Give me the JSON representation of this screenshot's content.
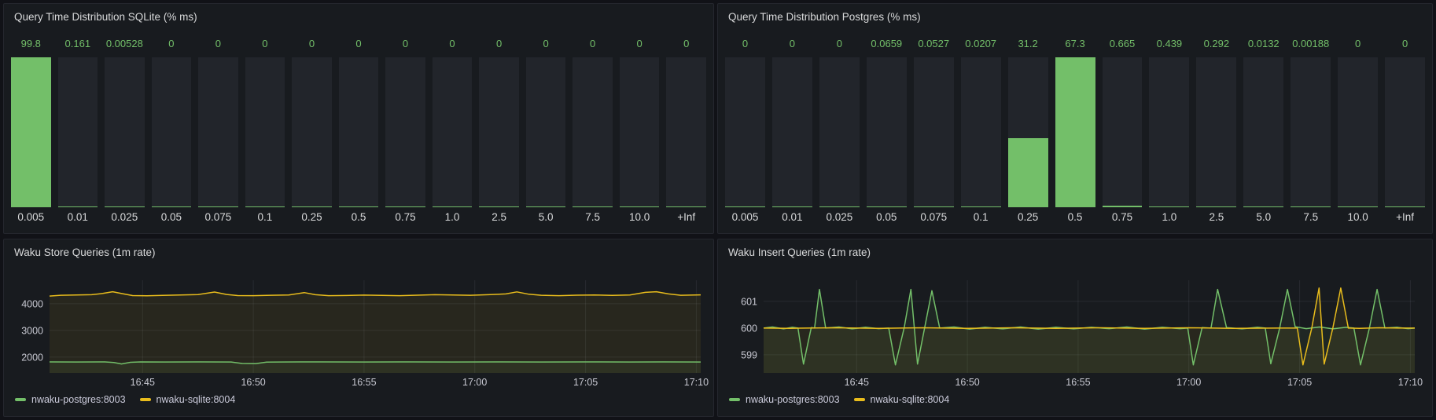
{
  "colors": {
    "green": "#73bf69",
    "yellow": "#e8bc1c",
    "bar_track": "#22252b",
    "panel_bg": "#181b1f",
    "page_bg": "#111217"
  },
  "chart_data": [
    {
      "type": "bar",
      "title": "Query Time Distribution SQLite (% ms)",
      "categories": [
        "0.005",
        "0.01",
        "0.025",
        "0.05",
        "0.075",
        "0.1",
        "0.25",
        "0.5",
        "0.75",
        "1.0",
        "2.5",
        "5.0",
        "7.5",
        "10.0",
        "+Inf"
      ],
      "values": [
        99.8,
        0.161,
        0.00528,
        0,
        0,
        0,
        0,
        0,
        0,
        0,
        0,
        0,
        0,
        0,
        0
      ],
      "value_labels": [
        "99.8",
        "0.161",
        "0.00528",
        "0",
        "0",
        "0",
        "0",
        "0",
        "0",
        "0",
        "0",
        "0",
        "0",
        "0",
        "0"
      ],
      "ylim": [
        0,
        99.8
      ],
      "bar_color": "#73bf69",
      "track_color": "#22252b",
      "grid": false,
      "legend_position": "none"
    },
    {
      "type": "bar",
      "title": "Query Time Distribution Postgres (% ms)",
      "categories": [
        "0.005",
        "0.01",
        "0.025",
        "0.05",
        "0.075",
        "0.1",
        "0.25",
        "0.5",
        "0.75",
        "1.0",
        "2.5",
        "5.0",
        "7.5",
        "10.0",
        "+Inf"
      ],
      "values": [
        0,
        0,
        0,
        0.0659,
        0.0527,
        0.0207,
        31.2,
        67.3,
        0.665,
        0.439,
        0.292,
        0.0132,
        0.00188,
        0,
        0
      ],
      "value_labels": [
        "0",
        "0",
        "0",
        "0.0659",
        "0.0527",
        "0.0207",
        "31.2",
        "67.3",
        "0.665",
        "0.439",
        "0.292",
        "0.0132",
        "0.00188",
        "0",
        "0"
      ],
      "ylim": [
        0,
        67.3
      ],
      "bar_color": "#73bf69",
      "track_color": "#22252b",
      "grid": false,
      "legend_position": "none"
    },
    {
      "type": "line",
      "title": "Waku Store Queries (1m rate)",
      "x_unit": "minutes after 16:40",
      "x_domain": [
        0.8,
        30.2
      ],
      "x_ticks": [
        {
          "v": 5,
          "label": "16:45"
        },
        {
          "v": 10,
          "label": "16:50"
        },
        {
          "v": 15,
          "label": "16:55"
        },
        {
          "v": 20,
          "label": "17:00"
        },
        {
          "v": 25,
          "label": "17:05"
        },
        {
          "v": 30,
          "label": "17:10"
        }
      ],
      "y_domain": [
        1410,
        4880
      ],
      "y_ticks": [
        {
          "v": 2000,
          "label": "2000"
        },
        {
          "v": 3000,
          "label": "3000"
        },
        {
          "v": 4000,
          "label": "4000"
        }
      ],
      "grid": true,
      "fill_opacity": 0.08,
      "legend_position": "bottom-left",
      "series": [
        {
          "name": "nwaku-postgres:8003",
          "color": "#73bf69",
          "points": [
            [
              0.8,
              1822
            ],
            [
              2.0,
              1820
            ],
            [
              3.3,
              1821
            ],
            [
              3.7,
              1798
            ],
            [
              4.05,
              1746
            ],
            [
              4.45,
              1808
            ],
            [
              4.9,
              1821
            ],
            [
              6.0,
              1820
            ],
            [
              7.5,
              1821
            ],
            [
              9.0,
              1819
            ],
            [
              9.5,
              1764
            ],
            [
              10.1,
              1757
            ],
            [
              10.6,
              1812
            ],
            [
              11.2,
              1820
            ],
            [
              13,
              1821
            ],
            [
              15,
              1820
            ],
            [
              17,
              1821
            ],
            [
              19,
              1820
            ],
            [
              21,
              1821
            ],
            [
              23,
              1820
            ],
            [
              25,
              1821
            ],
            [
              27,
              1820
            ],
            [
              28.5,
              1821
            ],
            [
              30.2,
              1820
            ]
          ]
        },
        {
          "name": "nwaku-sqlite:8004",
          "color": "#e8bc1c",
          "points": [
            [
              0.8,
              4290
            ],
            [
              1.3,
              4318
            ],
            [
              2.0,
              4330
            ],
            [
              2.7,
              4338
            ],
            [
              3.2,
              4386
            ],
            [
              3.65,
              4452
            ],
            [
              4.1,
              4378
            ],
            [
              4.55,
              4308
            ],
            [
              5.2,
              4300
            ],
            [
              5.9,
              4314
            ],
            [
              6.7,
              4330
            ],
            [
              7.5,
              4344
            ],
            [
              8.25,
              4440
            ],
            [
              8.8,
              4348
            ],
            [
              9.3,
              4308
            ],
            [
              10.0,
              4304
            ],
            [
              10.8,
              4318
            ],
            [
              11.6,
              4330
            ],
            [
              12.3,
              4418
            ],
            [
              12.8,
              4338
            ],
            [
              13.4,
              4304
            ],
            [
              14.2,
              4310
            ],
            [
              15.0,
              4324
            ],
            [
              15.8,
              4314
            ],
            [
              16.6,
              4304
            ],
            [
              17.4,
              4320
            ],
            [
              18.2,
              4338
            ],
            [
              19.0,
              4328
            ],
            [
              19.8,
              4318
            ],
            [
              20.6,
              4338
            ],
            [
              21.4,
              4368
            ],
            [
              21.9,
              4446
            ],
            [
              22.45,
              4358
            ],
            [
              23.0,
              4318
            ],
            [
              23.8,
              4304
            ],
            [
              24.6,
              4320
            ],
            [
              25.4,
              4330
            ],
            [
              26.2,
              4314
            ],
            [
              27.0,
              4330
            ],
            [
              27.7,
              4428
            ],
            [
              28.2,
              4452
            ],
            [
              28.75,
              4368
            ],
            [
              29.3,
              4318
            ],
            [
              30.2,
              4334
            ]
          ]
        }
      ]
    },
    {
      "type": "line",
      "title": "Waku Insert Queries (1m rate)",
      "x_unit": "minutes after 16:40",
      "x_domain": [
        0.8,
        30.2
      ],
      "x_ticks": [
        {
          "v": 5,
          "label": "16:45"
        },
        {
          "v": 10,
          "label": "16:50"
        },
        {
          "v": 15,
          "label": "16:55"
        },
        {
          "v": 20,
          "label": "17:00"
        },
        {
          "v": 25,
          "label": "17:05"
        },
        {
          "v": 30,
          "label": "17:10"
        }
      ],
      "y_domain": [
        598.32,
        601.79
      ],
      "y_ticks": [
        {
          "v": 599,
          "label": "599"
        },
        {
          "v": 600,
          "label": "600"
        },
        {
          "v": 601,
          "label": "601"
        }
      ],
      "grid": true,
      "fill_opacity": 0.08,
      "legend_position": "bottom-left",
      "series": [
        {
          "name": "nwaku-postgres:8003",
          "color": "#73bf69",
          "points": [
            [
              0.8,
              600
            ],
            [
              1.2,
              600.04
            ],
            [
              1.7,
              599.97
            ],
            [
              2.1,
              600.03
            ],
            [
              2.35,
              600
            ],
            [
              2.6,
              598.65
            ],
            [
              2.95,
              600.02
            ],
            [
              3.1,
              600
            ],
            [
              3.32,
              601.45
            ],
            [
              3.6,
              600
            ],
            [
              4.2,
              600.04
            ],
            [
              4.8,
              599.97
            ],
            [
              5.4,
              600.03
            ],
            [
              6.0,
              599.98
            ],
            [
              6.45,
              600
            ],
            [
              6.75,
              598.62
            ],
            [
              7.15,
              600.02
            ],
            [
              7.45,
              601.45
            ],
            [
              7.75,
              598.65
            ],
            [
              8.4,
              601.4
            ],
            [
              8.75,
              600
            ],
            [
              9.4,
              600.04
            ],
            [
              10.1,
              599.96
            ],
            [
              10.8,
              600.03
            ],
            [
              11.6,
              599.97
            ],
            [
              12.4,
              600.04
            ],
            [
              13.2,
              599.96
            ],
            [
              14.0,
              600.03
            ],
            [
              14.8,
              599.97
            ],
            [
              15.6,
              600.03
            ],
            [
              16.4,
              599.98
            ],
            [
              17.2,
              600.04
            ],
            [
              18.0,
              599.96
            ],
            [
              18.8,
              600.03
            ],
            [
              19.6,
              599.98
            ],
            [
              19.95,
              600
            ],
            [
              20.2,
              598.62
            ],
            [
              20.6,
              600.02
            ],
            [
              21.0,
              600
            ],
            [
              21.3,
              601.45
            ],
            [
              21.7,
              600.02
            ],
            [
              22.4,
              599.97
            ],
            [
              23.1,
              600.03
            ],
            [
              23.45,
              600
            ],
            [
              23.7,
              598.66
            ],
            [
              24.1,
              600
            ],
            [
              24.45,
              601.45
            ],
            [
              24.8,
              600.05
            ],
            [
              25.3,
              599.98
            ],
            [
              25.9,
              600.04
            ],
            [
              26.5,
              599.97
            ],
            [
              27.1,
              600.03
            ],
            [
              27.45,
              600
            ],
            [
              27.75,
              598.62
            ],
            [
              28.15,
              600
            ],
            [
              28.5,
              601.45
            ],
            [
              28.85,
              600
            ],
            [
              29.4,
              600.03
            ],
            [
              29.9,
              599.98
            ],
            [
              30.2,
              600
            ]
          ]
        },
        {
          "name": "nwaku-sqlite:8004",
          "color": "#e8bc1c",
          "points": [
            [
              0.8,
              600
            ],
            [
              2,
              599.99
            ],
            [
              4,
              600.01
            ],
            [
              6,
              599.99
            ],
            [
              8,
              600.01
            ],
            [
              10,
              599.99
            ],
            [
              12,
              600.01
            ],
            [
              14,
              599.99
            ],
            [
              16,
              600.01
            ],
            [
              18,
              599.99
            ],
            [
              20,
              600.01
            ],
            [
              22,
              599.99
            ],
            [
              24,
              600
            ],
            [
              24.9,
              600
            ],
            [
              25.15,
              598.62
            ],
            [
              25.55,
              600
            ],
            [
              25.88,
              601.5
            ],
            [
              26.0,
              600
            ],
            [
              26.11,
              598.65
            ],
            [
              26.5,
              600
            ],
            [
              26.86,
              601.5
            ],
            [
              27.2,
              600
            ],
            [
              27.7,
              599.99
            ],
            [
              28.6,
              600.01
            ],
            [
              29.5,
              600
            ],
            [
              30.2,
              600
            ]
          ]
        }
      ]
    }
  ]
}
